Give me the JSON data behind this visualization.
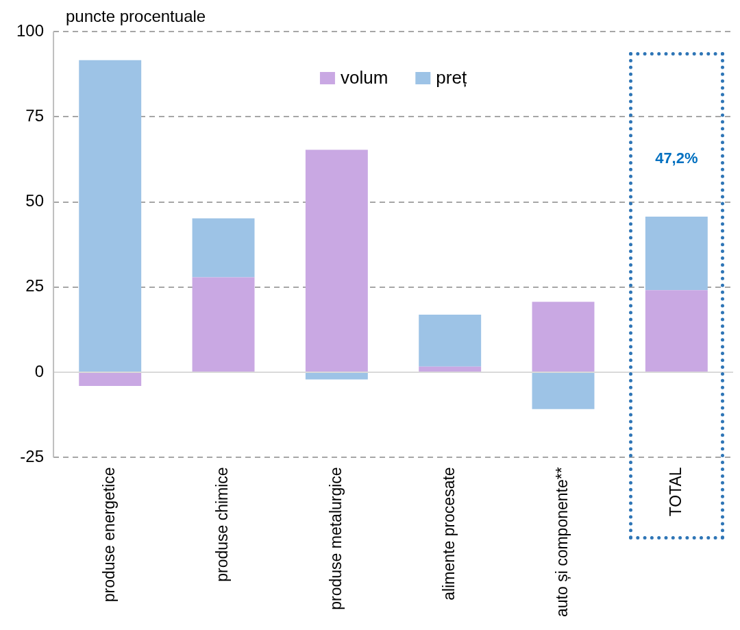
{
  "chart_data": {
    "type": "bar",
    "ylabel": "puncte procentuale",
    "categories": [
      "produse energetice",
      "produse chimice",
      "produse metalurgice",
      "alimente procesate",
      "auto și componente**",
      "TOTAL"
    ],
    "series": [
      {
        "name": "volum",
        "color": "#c9a8e3",
        "values": [
          -4,
          27.9,
          65.3,
          1.7,
          20.7,
          24.1
        ]
      },
      {
        "name": "preț",
        "color": "#9dc3e6",
        "values": [
          91.6,
          17.3,
          -2.1,
          15.2,
          -10.8,
          21.6
        ]
      }
    ],
    "stacked": true,
    "ylim": [
      -25,
      100
    ],
    "yticks": [
      -25,
      0,
      25,
      50,
      75,
      100
    ],
    "grid": "y",
    "legend": "top",
    "annotations": [
      "47,2%"
    ]
  }
}
